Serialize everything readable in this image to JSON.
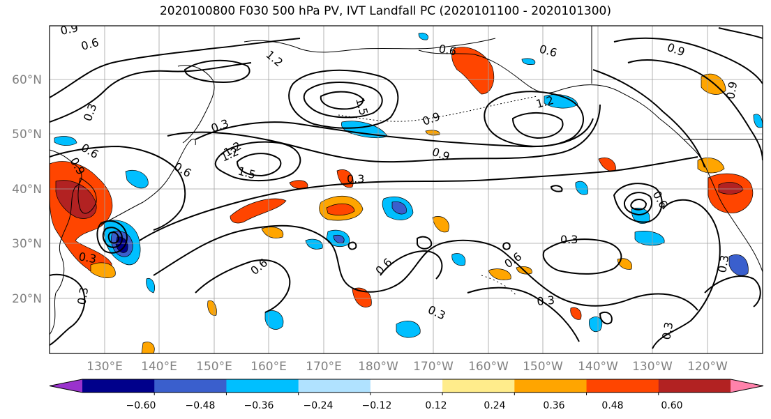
{
  "title": "2020100800 F030 500 hPa PV, IVT Landfall PC (2020101100 - 2020101300)",
  "lat_labels": [
    "60°N",
    "50°N",
    "40°N",
    "30°N",
    "20°N"
  ],
  "lon_labels": [
    "130°E",
    "140°E",
    "150°E",
    "160°E",
    "170°E",
    "180°W",
    "170°W",
    "160°W",
    "150°W",
    "140°W",
    "130°W",
    "120°W"
  ],
  "contour_labels": [
    "0.9",
    "0.6",
    "0.3",
    "1.2",
    "1.5",
    "1.2",
    "0.3",
    "0.6",
    "0.9",
    "0.6",
    "1.2",
    "1.5",
    "0.9",
    "0.9",
    "0.6",
    "1.2",
    "0.6",
    "0.3",
    "0.6",
    "0.6",
    "0.3",
    "0.3",
    "0.6",
    "0.3",
    "0.3",
    "0.3",
    "0.6",
    "0.9",
    "0.9",
    "0.3",
    "0.3"
  ],
  "colorbar": {
    "ticks": [
      "−0.60",
      "−0.48",
      "−0.36",
      "−0.24",
      "−0.12",
      "0.12",
      "0.24",
      "0.36",
      "0.48",
      "0.60"
    ],
    "colors": [
      "#9a32cd",
      "#00008b",
      "#3a5fcd",
      "#00bfff",
      "#b0e2ff",
      "#ffffff",
      "#ffec8b",
      "#ffa500",
      "#ff4500",
      "#b22222",
      "#ff82ab"
    ]
  },
  "fill_colors": {
    "neg_light": "#b0e2ff",
    "neg_mid": "#00bfff",
    "neg_strong": "#3a5fcd",
    "neg_max": "#00008b",
    "pos_light": "#ffec8b",
    "pos_mid": "#ffa500",
    "pos_strong": "#ff4500",
    "pos_max": "#b22222"
  }
}
